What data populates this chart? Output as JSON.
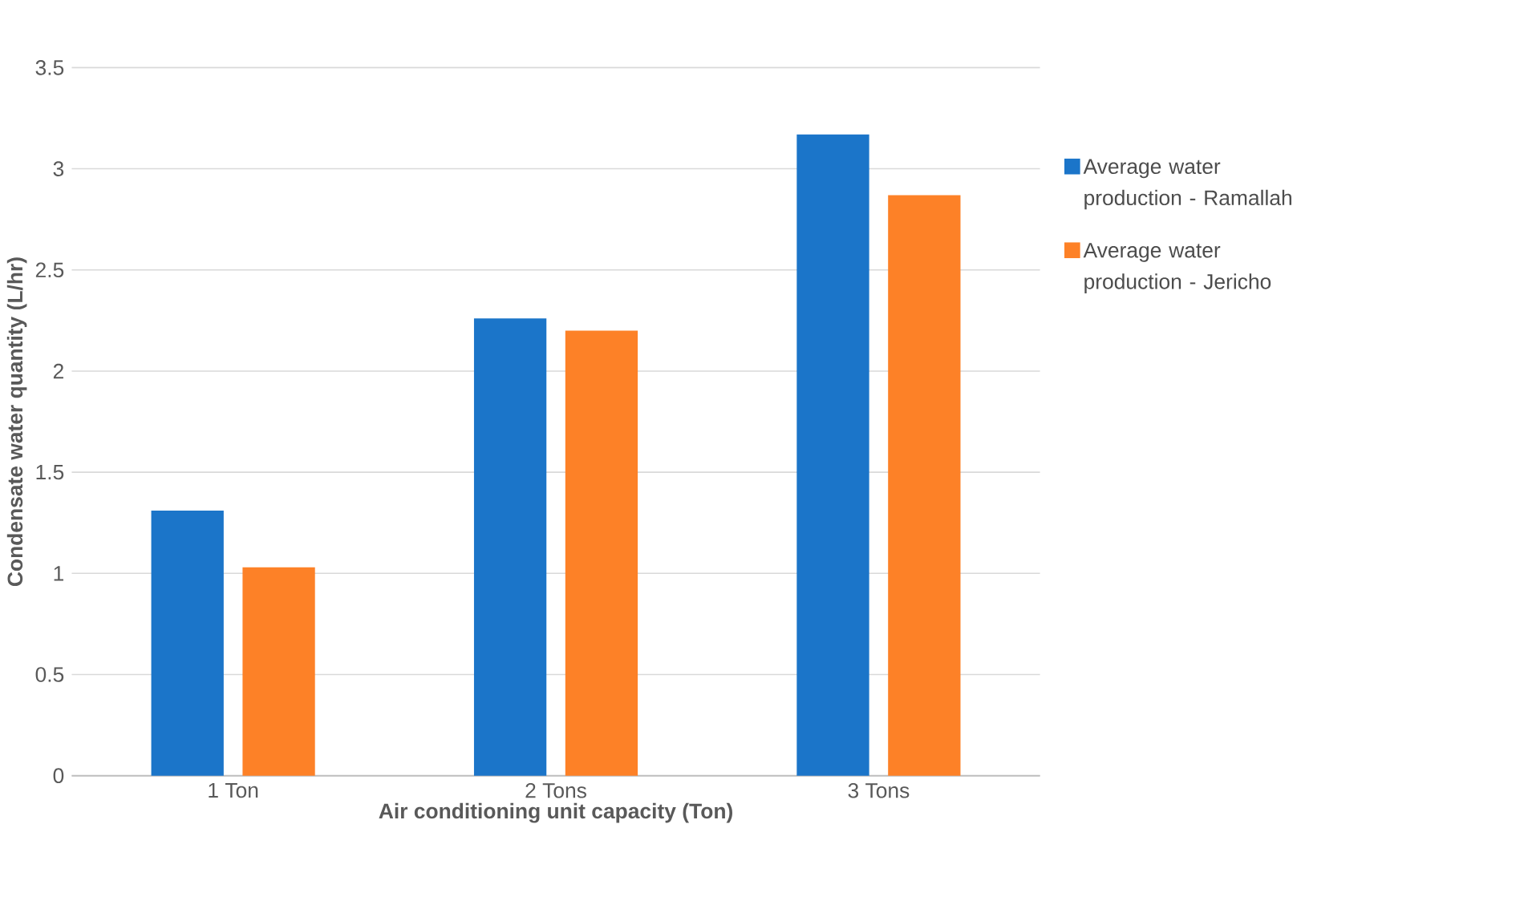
{
  "chart_data": {
    "type": "bar",
    "xlabel": "Air conditioning unit capacity (Ton)",
    "ylabel": "Condensate water quantity (L/hr)",
    "categories": [
      "1 Ton",
      "2 Tons",
      "3 Tons"
    ],
    "series": [
      {
        "name": "Average water production - Ramallah",
        "color": "#1b75c9",
        "values": [
          1.31,
          2.26,
          3.17
        ]
      },
      {
        "name": "Average water production - Jericho",
        "color": "#fd8127",
        "values": [
          1.03,
          2.2,
          2.87
        ]
      }
    ],
    "ylim": [
      0,
      3.5
    ],
    "yticks": [
      0,
      0.5,
      1,
      1.5,
      2,
      2.5,
      3,
      3.5
    ],
    "grid": "y",
    "legend": "right"
  }
}
